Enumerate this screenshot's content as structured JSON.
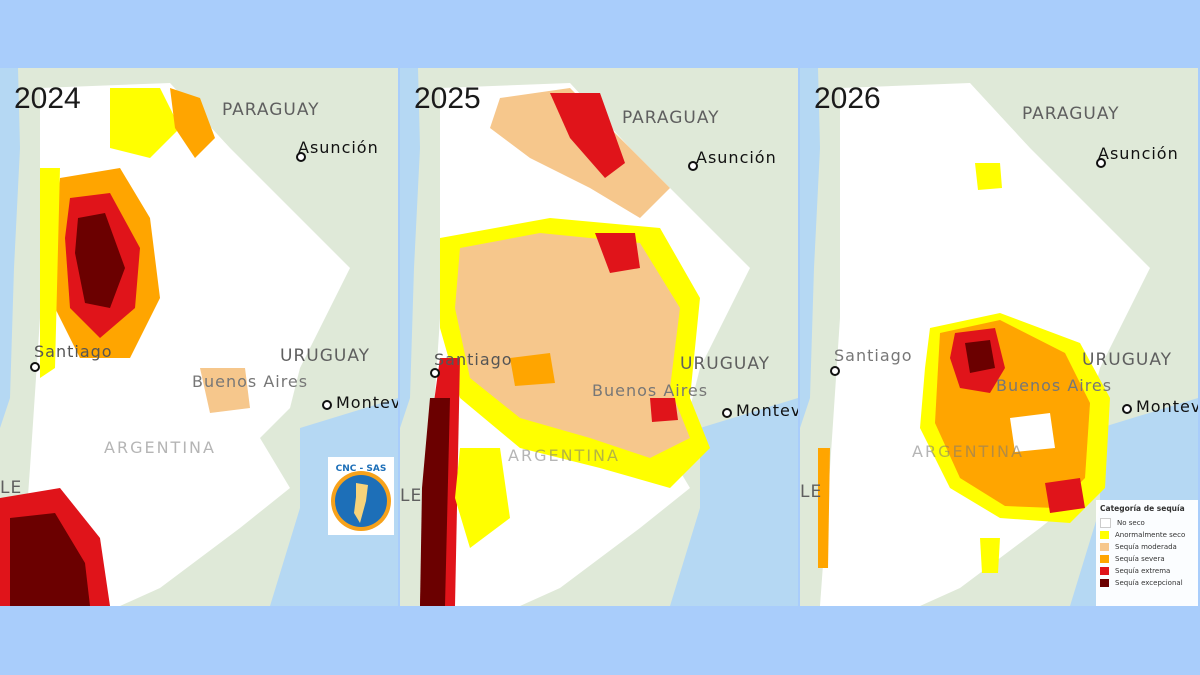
{
  "panels": [
    {
      "year": "2024",
      "paraguay": "PARAGUAY",
      "asuncion": "Asunción",
      "uruguay": "URUGUAY",
      "santiago": "Santiago",
      "buenos_aires": "Buenos Aires",
      "montevideo": "Montev",
      "argentina": "ARGENTINA",
      "chile_fragment": "LE"
    },
    {
      "year": "2025",
      "paraguay": "PARAGUAY",
      "asuncion": "Asunción",
      "uruguay": "URUGUAY",
      "santiago": "Santiago",
      "buenos_aires": "Buenos Aires",
      "montevideo": "Montev",
      "argentina": "ARGENTINA",
      "chile_fragment": "LE"
    },
    {
      "year": "2026",
      "paraguay": "PARAGUAY",
      "asuncion": "Asunción",
      "uruguay": "URUGUAY",
      "santiago": "Santiago",
      "buenos_aires": "Buenos Aires",
      "montevideo": "Montev",
      "argentina": "ARGENTINA",
      "chile_fragment": "LE"
    }
  ],
  "logo_text": "CNC - SAS",
  "legend": {
    "title": "Categoría de sequía",
    "items": [
      {
        "label": "No seco",
        "color": "#ffffff"
      },
      {
        "label": "Anormalmente seco",
        "color": "#ffff00"
      },
      {
        "label": "Sequía moderada",
        "color": "#f6c78c"
      },
      {
        "label": "Sequía severa",
        "color": "#ffa500"
      },
      {
        "label": "Sequía extrema",
        "color": "#e0141a"
      },
      {
        "label": "Sequía excepcional",
        "color": "#6b0000"
      }
    ]
  },
  "colors": {
    "background": "#a9cdfb",
    "ocean": "#b5d8f3",
    "land_neighbor": "#dfe9d8",
    "argentina_land": "#ffffff"
  }
}
